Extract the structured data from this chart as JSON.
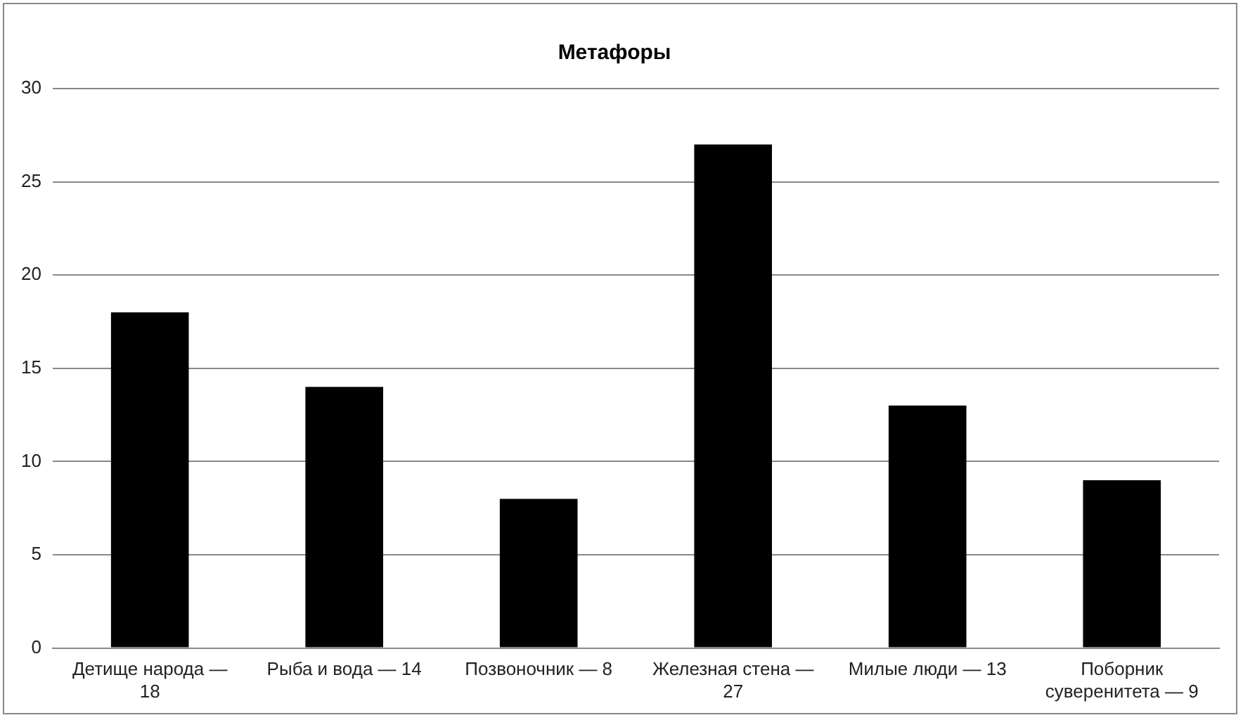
{
  "chart_data": {
    "type": "bar",
    "title": "Метафоры",
    "categories": [
      "Детище народа — 18",
      "Рыба и вода — 14",
      "Позвоночник — 8",
      "Железная стена — 27",
      "Милые люди — 13",
      "Поборник суверенитета — 9"
    ],
    "values": [
      18,
      14,
      8,
      27,
      13,
      9
    ],
    "color": "#000000",
    "ylim": [
      0,
      30
    ],
    "yticks": [
      0,
      5,
      10,
      15,
      20,
      25,
      30
    ],
    "grid": "y",
    "legend": false
  }
}
